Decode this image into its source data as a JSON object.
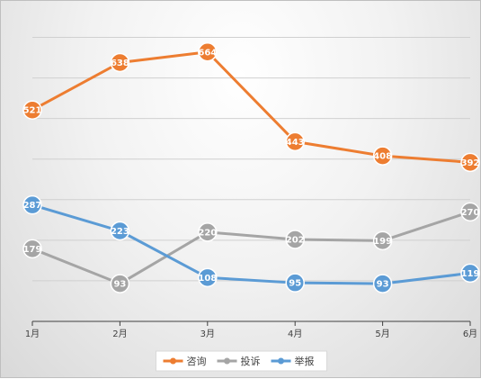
{
  "chart_data": {
    "type": "line",
    "categories": [
      "1月",
      "2月",
      "3月",
      "4月",
      "5月",
      "6月"
    ],
    "series": [
      {
        "name": "咨询",
        "color": "#ed7d31",
        "values": [
          521,
          638,
          664,
          443,
          408,
          392
        ]
      },
      {
        "name": "投诉",
        "color": "#a5a5a5",
        "values": [
          179,
          93,
          220,
          202,
          199,
          270
        ]
      },
      {
        "name": "举报",
        "color": "#5b9bd5",
        "values": [
          287,
          223,
          108,
          95,
          93,
          119
        ]
      }
    ],
    "ylim": [
      0,
      750
    ],
    "y_axis_labels_visible": false,
    "grid": true,
    "data_labels": true,
    "legend": "bottom-center"
  }
}
